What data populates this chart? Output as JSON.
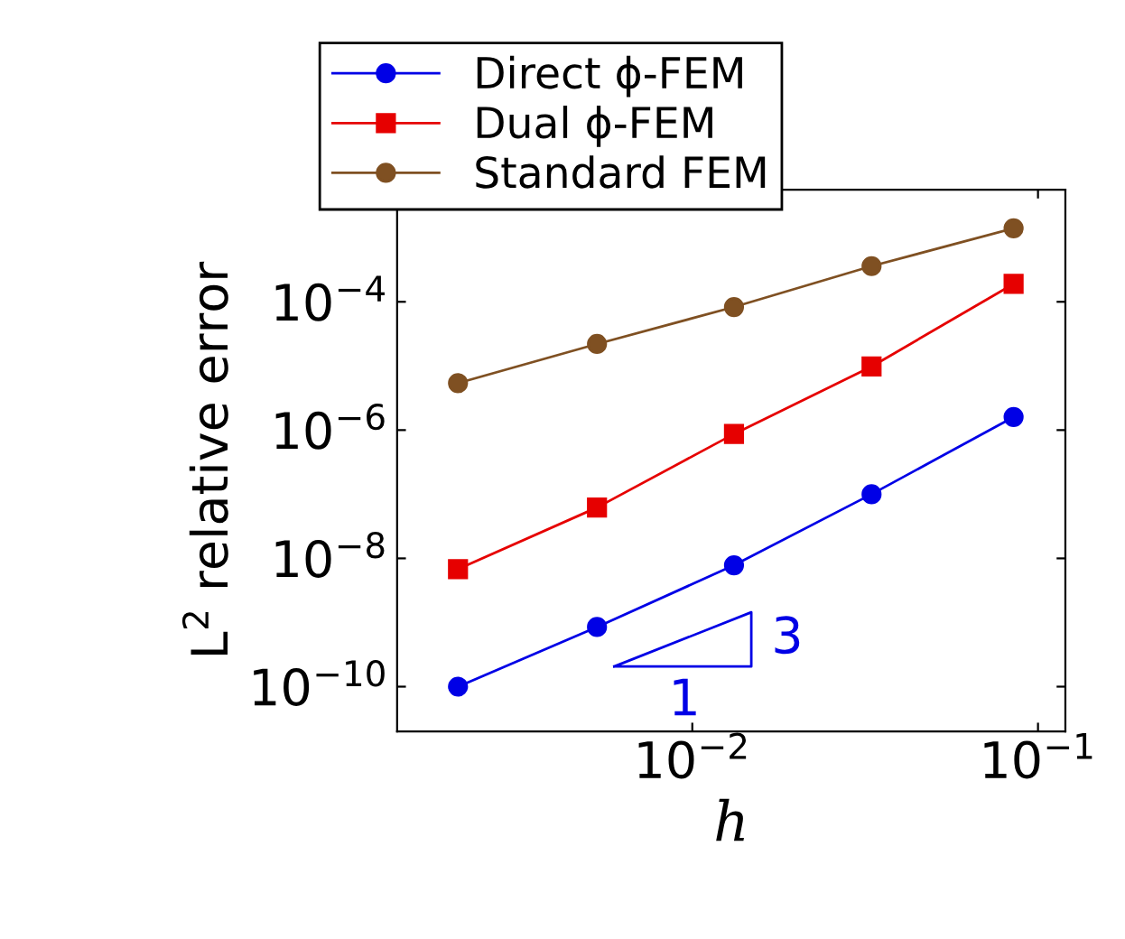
{
  "chart_data": {
    "type": "line",
    "xlabel": "h",
    "ylabel": "L$^{2}$ relative error",
    "log": "xy",
    "x": [
      0.0021,
      0.0053,
      0.0132,
      0.033,
      0.085
    ],
    "series": [
      {
        "name": "Direct ϕ-FEM",
        "color": "#0000e6",
        "marker": "circle",
        "values": [
          1e-10,
          8.5e-10,
          7.8e-09,
          1e-07,
          1.6e-06
        ]
      },
      {
        "name": "Dual ϕ-FEM",
        "color": "#e60000",
        "marker": "square",
        "values": [
          6.8e-09,
          6.2e-08,
          8.7e-07,
          9.8e-06,
          0.00019
        ]
      },
      {
        "name": "Standard FEM",
        "color": "#7f5022",
        "marker": "circle",
        "values": [
          5.4e-06,
          2.2e-05,
          8.3e-05,
          0.00036,
          0.0014
        ]
      }
    ],
    "xlim": [
      0.0014,
      0.12
    ],
    "ylim": [
      2e-11,
      0.0056
    ],
    "xticks": [
      {
        "value": 0.01,
        "label": "10$^{−2}$"
      },
      {
        "value": 0.1,
        "label": "10$^{−1}$"
      }
    ],
    "yticks": [
      {
        "value": 1e-10,
        "label": "10$^{−10}$"
      },
      {
        "value": 1e-08,
        "label": "10$^{−8}$"
      },
      {
        "value": 1e-06,
        "label": "10$^{−6}$"
      },
      {
        "value": 0.0001,
        "label": "10$^{−4}$"
      }
    ],
    "annotations": [
      "3",
      "1"
    ],
    "legend": "top",
    "grid": false
  }
}
